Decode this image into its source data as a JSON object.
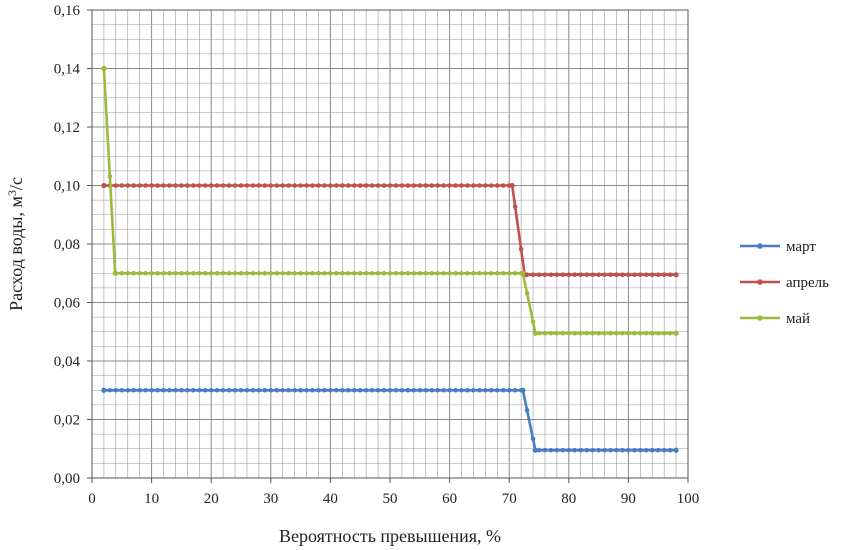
{
  "chart_data": {
    "type": "line",
    "xlabel": "Вероятность превышения, %",
    "ylabel": "Расход воды, м",
    "ylabel_sup": "3",
    "ylabel_tail": "/с",
    "xlim": [
      0,
      100
    ],
    "ylim": [
      0,
      0.16
    ],
    "xticks": [
      "0",
      "10",
      "20",
      "30",
      "40",
      "50",
      "60",
      "70",
      "80",
      "90",
      "100"
    ],
    "yticks": [
      "0,00",
      "0,02",
      "0,04",
      "0,06",
      "0,08",
      "0,10",
      "0,12",
      "0,14",
      "0,16"
    ],
    "grid": true,
    "legend_position": "right",
    "series": [
      {
        "name": "март",
        "color": "#4a7cc4",
        "points": [
          [
            2,
            0.03
          ],
          [
            72.3,
            0.03
          ],
          [
            74.4,
            0.0095
          ],
          [
            98,
            0.0095
          ]
        ]
      },
      {
        "name": "апрель",
        "color": "#c0504d",
        "points": [
          [
            2,
            0.1
          ],
          [
            70.5,
            0.1
          ],
          [
            72.6,
            0.0695
          ],
          [
            98,
            0.0695
          ]
        ]
      },
      {
        "name": "май",
        "color": "#9bbb3c",
        "points": [
          [
            2,
            0.14
          ],
          [
            3.9,
            0.07
          ],
          [
            72.3,
            0.07
          ],
          [
            74.4,
            0.0495
          ],
          [
            98,
            0.0495
          ]
        ]
      }
    ]
  }
}
